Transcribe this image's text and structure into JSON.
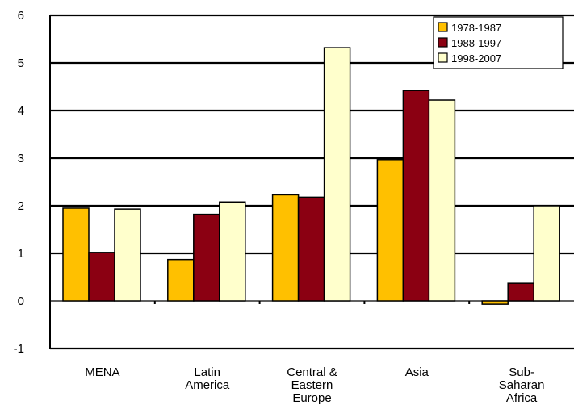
{
  "chart_data": {
    "type": "bar",
    "title": "",
    "xlabel": "",
    "ylabel": "",
    "ylim": [
      -1,
      6
    ],
    "yticks": [
      6,
      5,
      4,
      3,
      2,
      1,
      0,
      -1
    ],
    "grid": "horizontal",
    "legend_position": "top-right",
    "categories": [
      [
        "MENA"
      ],
      [
        "Latin",
        "America"
      ],
      [
        "Central &",
        "Eastern",
        "Europe"
      ],
      [
        "Asia"
      ],
      [
        "Sub-",
        "Saharan",
        "Africa"
      ]
    ],
    "series": [
      {
        "name": "1978-1987",
        "color": "#FFC000",
        "values": [
          1.95,
          0.87,
          2.23,
          2.97,
          -0.07
        ]
      },
      {
        "name": "1988-1997",
        "color": "#8B0012",
        "values": [
          1.02,
          1.82,
          2.18,
          4.42,
          0.37
        ]
      },
      {
        "name": "1998-2007",
        "color": "#FFFFCC",
        "values": [
          1.93,
          2.08,
          5.32,
          4.22,
          2.0
        ]
      }
    ]
  }
}
